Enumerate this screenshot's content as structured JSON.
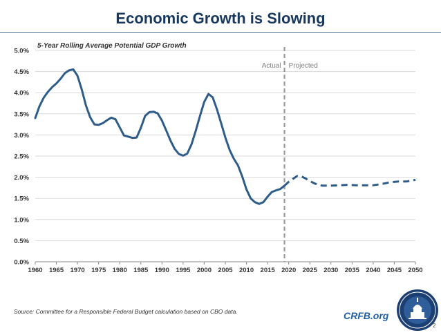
{
  "title": "Economic Growth is Slowing",
  "source_note": "Source: Committee for a Responsible Federal Budget calculation based on CBO data.",
  "brand": "CRFB.org",
  "page_number": "2",
  "seal_icon": "capitol-seal-icon",
  "colors": {
    "title": "#17375e",
    "series": "#2e5c8a",
    "divider": "#999999",
    "brand": "#1f5fa8"
  },
  "chart_data": {
    "type": "line",
    "title": "5-Year Rolling Average Potential GDP Growth",
    "xlabel": "",
    "ylabel": "",
    "xlim": [
      1960,
      2050
    ],
    "ylim": [
      0,
      0.05
    ],
    "x_ticks": [
      1960,
      1965,
      1970,
      1975,
      1980,
      1985,
      1990,
      1995,
      2000,
      2005,
      2010,
      2015,
      2020,
      2025,
      2030,
      2035,
      2040,
      2045,
      2050
    ],
    "y_ticks": [
      {
        "value": 0.0,
        "label": "0.0%"
      },
      {
        "value": 0.005,
        "label": "0.5%"
      },
      {
        "value": 0.01,
        "label": "1.0%"
      },
      {
        "value": 0.015,
        "label": "1.5%"
      },
      {
        "value": 0.02,
        "label": "2.0%"
      },
      {
        "value": 0.025,
        "label": "2.5%"
      },
      {
        "value": 0.03,
        "label": "3.0%"
      },
      {
        "value": 0.035,
        "label": "3.5%"
      },
      {
        "value": 0.04,
        "label": "4.0%"
      },
      {
        "value": 0.045,
        "label": "4.5%"
      },
      {
        "value": 0.05,
        "label": "5.0%"
      }
    ],
    "grid": true,
    "divider": {
      "x": 2019,
      "left_label": "Actual",
      "right_label": "Projected"
    },
    "series": [
      {
        "style": "solid",
        "points": [
          [
            1960,
            0.034
          ],
          [
            1961,
            0.0368
          ],
          [
            1962,
            0.0388
          ],
          [
            1963,
            0.0402
          ],
          [
            1964,
            0.0413
          ],
          [
            1965,
            0.0422
          ],
          [
            1966,
            0.0433
          ],
          [
            1967,
            0.0446
          ],
          [
            1968,
            0.0453
          ],
          [
            1969,
            0.0455
          ],
          [
            1970,
            0.044
          ],
          [
            1971,
            0.0408
          ],
          [
            1972,
            0.037
          ],
          [
            1973,
            0.0342
          ],
          [
            1974,
            0.0325
          ],
          [
            1975,
            0.0324
          ],
          [
            1976,
            0.0328
          ],
          [
            1977,
            0.0335
          ],
          [
            1978,
            0.0341
          ],
          [
            1979,
            0.0337
          ],
          [
            1980,
            0.0318
          ],
          [
            1981,
            0.0299
          ],
          [
            1982,
            0.0296
          ],
          [
            1983,
            0.0293
          ],
          [
            1984,
            0.0294
          ],
          [
            1985,
            0.0317
          ],
          [
            1986,
            0.0345
          ],
          [
            1987,
            0.0354
          ],
          [
            1988,
            0.0355
          ],
          [
            1989,
            0.0351
          ],
          [
            1990,
            0.0334
          ],
          [
            1991,
            0.0311
          ],
          [
            1992,
            0.0287
          ],
          [
            1993,
            0.0267
          ],
          [
            1994,
            0.0255
          ],
          [
            1995,
            0.0251
          ],
          [
            1996,
            0.0256
          ],
          [
            1997,
            0.0278
          ],
          [
            1998,
            0.031
          ],
          [
            1999,
            0.0345
          ],
          [
            2000,
            0.0378
          ],
          [
            2001,
            0.0397
          ],
          [
            2002,
            0.0389
          ],
          [
            2003,
            0.0361
          ],
          [
            2004,
            0.0328
          ],
          [
            2005,
            0.0294
          ],
          [
            2006,
            0.0265
          ],
          [
            2007,
            0.0244
          ],
          [
            2008,
            0.0228
          ],
          [
            2009,
            0.0202
          ],
          [
            2010,
            0.0171
          ],
          [
            2011,
            0.015
          ],
          [
            2012,
            0.0141
          ],
          [
            2013,
            0.0137
          ],
          [
            2014,
            0.0141
          ],
          [
            2015,
            0.0154
          ],
          [
            2016,
            0.0165
          ],
          [
            2017,
            0.0169
          ],
          [
            2018,
            0.0172
          ],
          [
            2019,
            0.018
          ]
        ]
      },
      {
        "style": "dashed",
        "points": [
          [
            2019,
            0.018
          ],
          [
            2020,
            0.0189
          ],
          [
            2021,
            0.0196
          ],
          [
            2022,
            0.0203
          ],
          [
            2023,
            0.0202
          ],
          [
            2024,
            0.0197
          ],
          [
            2025,
            0.0191
          ],
          [
            2026,
            0.0186
          ],
          [
            2027,
            0.0182
          ],
          [
            2028,
            0.018
          ],
          [
            2029,
            0.018
          ],
          [
            2030,
            0.018
          ],
          [
            2032,
            0.0181
          ],
          [
            2034,
            0.0182
          ],
          [
            2036,
            0.0181
          ],
          [
            2038,
            0.0181
          ],
          [
            2040,
            0.0181
          ],
          [
            2042,
            0.0184
          ],
          [
            2044,
            0.0188
          ],
          [
            2046,
            0.019
          ],
          [
            2048,
            0.019
          ],
          [
            2050,
            0.0194
          ]
        ]
      }
    ]
  }
}
